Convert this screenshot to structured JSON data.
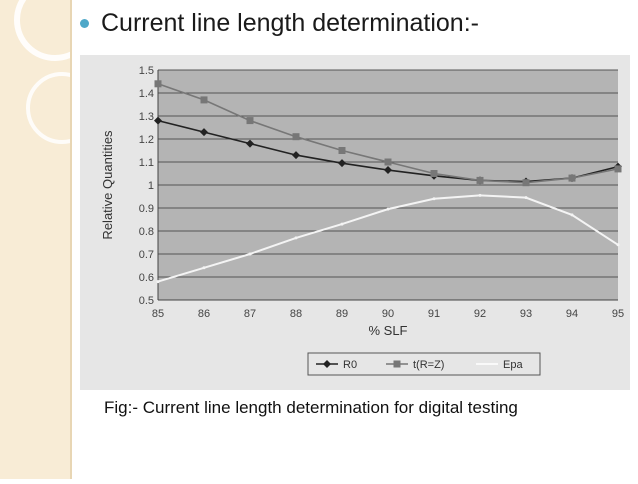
{
  "slide": {
    "bullet_title": "Current line length determination:-",
    "caption": "Fig:- Current line length determination for digital testing"
  },
  "colors": {
    "bullet": "#4fa8c8",
    "plot_background": "#b4b4b4",
    "frame_background": "#e6e6e6"
  },
  "chart_data": {
    "type": "line",
    "title": "",
    "xlabel": "% SLF",
    "ylabel": "Relative Quantities",
    "xlim": [
      85,
      95
    ],
    "ylim": [
      0.5,
      1.5
    ],
    "xticks": [
      85,
      86,
      87,
      88,
      89,
      90,
      91,
      92,
      93,
      94,
      95
    ],
    "yticks": [
      0.5,
      0.6,
      0.7,
      0.8,
      0.9,
      1,
      1.1,
      1.2,
      1.3,
      1.4,
      1.5
    ],
    "grid": true,
    "legend_position": "bottom",
    "x": [
      85,
      86,
      87,
      88,
      89,
      90,
      91,
      92,
      93,
      94,
      95
    ],
    "series": [
      {
        "name": "R0",
        "marker": "diamond",
        "color": "#222222",
        "values": [
          1.28,
          1.23,
          1.18,
          1.13,
          1.095,
          1.065,
          1.04,
          1.02,
          1.015,
          1.03,
          1.08
        ]
      },
      {
        "name": "t(R=Z)",
        "marker": "square",
        "color": "#777777",
        "values": [
          1.44,
          1.37,
          1.28,
          1.21,
          1.15,
          1.1,
          1.05,
          1.02,
          1.01,
          1.03,
          1.07
        ]
      },
      {
        "name": "Epa",
        "marker": "none",
        "color": "#f4f4f4",
        "values": [
          0.58,
          0.64,
          0.7,
          0.77,
          0.83,
          0.895,
          0.94,
          0.955,
          0.945,
          0.87,
          0.74
        ]
      }
    ]
  }
}
